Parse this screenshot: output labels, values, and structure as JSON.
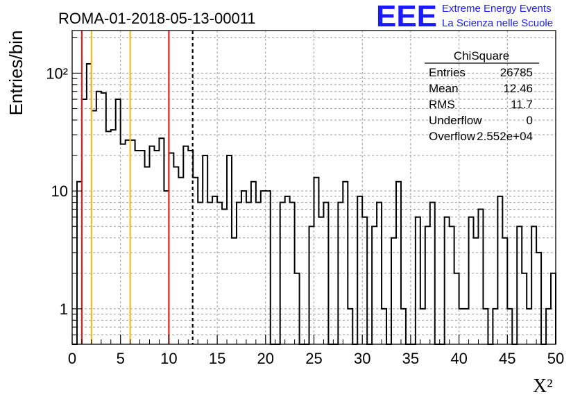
{
  "chart_data": {
    "type": "histogram",
    "title": "ROMA-01-2018-05-13-00011",
    "xlabel": "X²",
    "ylabel": "Entries/bin",
    "xlim": [
      0,
      50
    ],
    "ylim": [
      0.5,
      230
    ],
    "yscale": "log",
    "grid": true,
    "bin_width": 0.5,
    "xticks": [
      0,
      5,
      10,
      15,
      20,
      25,
      30,
      35,
      40,
      45,
      50
    ],
    "yticks": [
      {
        "value": 1,
        "label": "1"
      },
      {
        "value": 10,
        "label": "10"
      },
      {
        "value": 100,
        "label": "10²"
      }
    ],
    "values": [
      0,
      12,
      60,
      120,
      48,
      70,
      68,
      32,
      33,
      60,
      25,
      27,
      27,
      22,
      22,
      16,
      24,
      22,
      28,
      10,
      21,
      16,
      13,
      24,
      22,
      13,
      8,
      20,
      8,
      9,
      8,
      7,
      20,
      4,
      8,
      10,
      8,
      12,
      8,
      10,
      10,
      0,
      0,
      8,
      9,
      8,
      2,
      0,
      0,
      5,
      13,
      6,
      8,
      0,
      0,
      8,
      12,
      1,
      0,
      9,
      6,
      0,
      5,
      8,
      1,
      0,
      4,
      12,
      1,
      0,
      0,
      6,
      1,
      5,
      8,
      0,
      0,
      6,
      5,
      2,
      1,
      1,
      6,
      4,
      7,
      1,
      0,
      1,
      9,
      4,
      1,
      0,
      5,
      2,
      1,
      5,
      3,
      0,
      1,
      2
    ],
    "vertical_lines": [
      {
        "x": 1,
        "color": "#e02020",
        "style": "solid"
      },
      {
        "x": 2,
        "color": "#f0c020",
        "style": "solid"
      },
      {
        "x": 6,
        "color": "#f0c020",
        "style": "solid"
      },
      {
        "x": 10,
        "color": "#e02020",
        "style": "solid"
      },
      {
        "x": 12.46,
        "color": "#000000",
        "style": "dashed"
      }
    ],
    "stats_box": {
      "title": "ChiSquare",
      "rows": [
        {
          "label": "Entries",
          "value": "26785"
        },
        {
          "label": "Mean",
          "value": "12.46"
        },
        {
          "label": "RMS",
          "value": "11.7"
        },
        {
          "label": "Underflow",
          "value": "0"
        },
        {
          "label": "Overflow",
          "value": "2.552e+04"
        }
      ]
    }
  },
  "logo": {
    "text": "EEE",
    "line1": "Extreme Energy Events",
    "line2": "La Scienza nelle Scuole",
    "color": "#1a1aff"
  }
}
